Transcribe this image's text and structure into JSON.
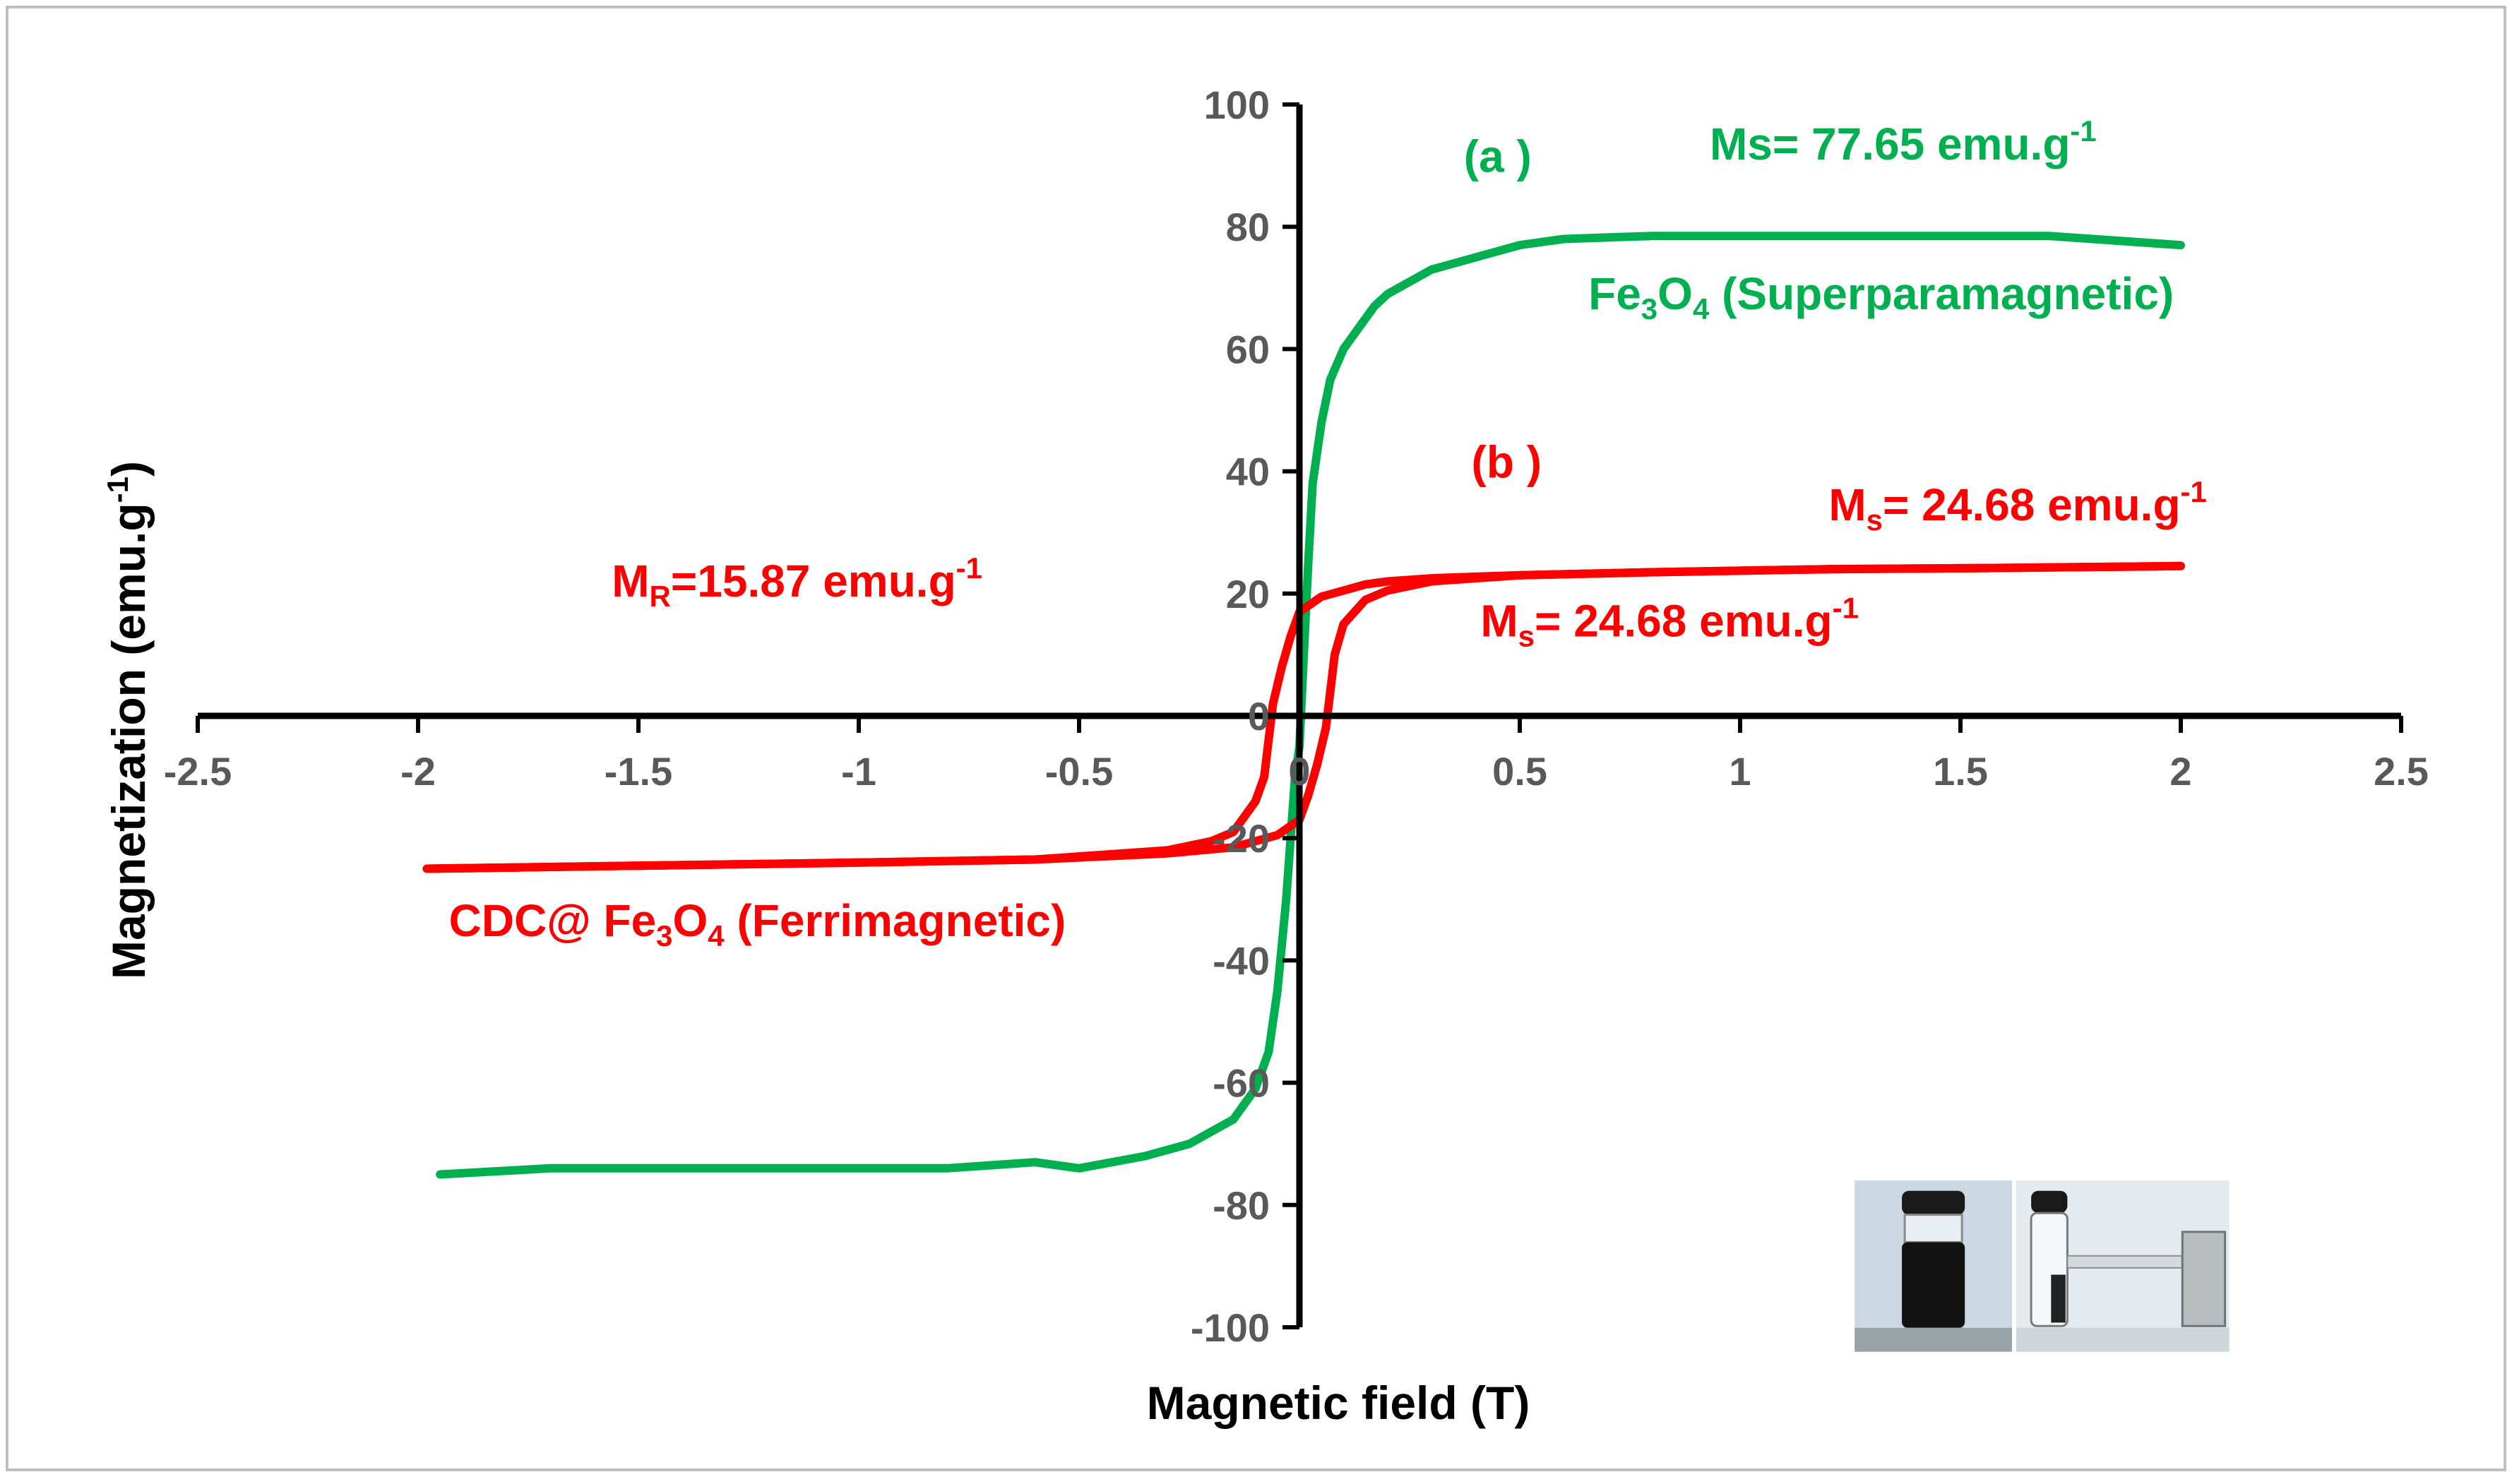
{
  "chart_data": {
    "type": "line",
    "title": "",
    "xlabel": "Magnetic field (T)",
    "ylabel": "Magnetization (emu.g⁻¹)",
    "ylabel_parts": {
      "main": "Magnetization (emu.g",
      "sup": "-1",
      "close": ")"
    },
    "xlim": [
      -2.5,
      2.5
    ],
    "ylim": [
      -100,
      100
    ],
    "x_ticks": [
      -2.5,
      -2,
      -1.5,
      -1,
      -0.5,
      0,
      0.5,
      1,
      1.5,
      2,
      2.5
    ],
    "y_ticks": [
      -100,
      -80,
      -60,
      -40,
      -20,
      0,
      20,
      40,
      60,
      80,
      100
    ],
    "x_tick_labels": [
      "-2.5",
      "-2",
      "-1.5",
      "-1",
      "-0.5",
      "0",
      "0.5",
      "1",
      "1.5",
      "2",
      "2.5"
    ],
    "y_tick_labels": [
      "-100",
      "-80",
      "-60",
      "-40",
      "-20",
      "0",
      "20",
      "40",
      "60",
      "80",
      "100"
    ],
    "colors": {
      "fe3o4": "#00B050",
      "cdc": "#FF0000",
      "axis": "#000000",
      "tick": "#595959"
    },
    "series": [
      {
        "name": "Fe3O4 (Superparamagnetic)",
        "color": "#00B050",
        "x": [
          -1.95,
          -1.7,
          -1.4,
          -1.1,
          -0.8,
          -0.6,
          -0.5,
          -0.35,
          -0.25,
          -0.15,
          -0.1,
          -0.07,
          -0.05,
          -0.03,
          -0.02,
          -0.01,
          0,
          0.01,
          0.02,
          0.03,
          0.05,
          0.07,
          0.1,
          0.13,
          0.17,
          0.2,
          0.25,
          0.3,
          0.4,
          0.5,
          0.6,
          0.8,
          1.0,
          1.2,
          1.5,
          1.7,
          1.8,
          1.9,
          2.0
        ],
        "y": [
          -75,
          -74,
          -74,
          -74,
          -74,
          -73,
          -74,
          -72,
          -70,
          -66,
          -61,
          -55,
          -45,
          -30,
          -20,
          -10,
          -5,
          10,
          25,
          38,
          48,
          55,
          60,
          63,
          67,
          69,
          71,
          73,
          75,
          77,
          78,
          78.5,
          78.5,
          78.5,
          78.5,
          78.5,
          78,
          77.5,
          77
        ]
      },
      {
        "name": "CDC@ Fe3O4 (Ferrimagnetic) - ascending",
        "color": "#FF0000",
        "x": [
          -1.98,
          -1.5,
          -1.0,
          -0.6,
          -0.3,
          -0.15,
          -0.05,
          0,
          0.02,
          0.04,
          0.06,
          0.07,
          0.08,
          0.1,
          0.15,
          0.2,
          0.3,
          0.5,
          0.8,
          1.2,
          1.6,
          2.0
        ],
        "y": [
          -25,
          -24.5,
          -24,
          -23.5,
          -22.5,
          -21.5,
          -19.5,
          -17,
          -13,
          -8,
          -2,
          4,
          10,
          15,
          19,
          20.5,
          22,
          23,
          23.5,
          24,
          24.2,
          24.5
        ]
      },
      {
        "name": "CDC@ Fe3O4 (Ferrimagnetic) - descending",
        "color": "#FF0000",
        "x": [
          2.0,
          1.6,
          1.2,
          0.8,
          0.5,
          0.3,
          0.2,
          0.15,
          0.1,
          0.05,
          0,
          -0.02,
          -0.04,
          -0.06,
          -0.07,
          -0.08,
          -0.1,
          -0.15,
          -0.2,
          -0.3,
          -0.6,
          -1.0,
          -1.5,
          -1.98
        ],
        "y": [
          24.5,
          24.2,
          24,
          23.5,
          23,
          22.5,
          22,
          21.5,
          20.5,
          19.5,
          17,
          13,
          8,
          2,
          -4,
          -10,
          -14,
          -19,
          -20.5,
          -22,
          -23.5,
          -24,
          -24.5,
          -25
        ]
      }
    ],
    "annotations": [
      {
        "id": "a-label",
        "parts": [
          {
            "t": "(a )"
          }
        ],
        "color": "#00B050",
        "x": 0.45,
        "y": 89
      },
      {
        "id": "ms-a",
        "parts": [
          {
            "t": "Ms= 77.65 emu.g"
          },
          {
            "t": "-1",
            "s": "sup"
          }
        ],
        "color": "#00B050",
        "x": 1.37,
        "y": 91
      },
      {
        "id": "fe3o4-label",
        "parts": [
          {
            "t": "Fe"
          },
          {
            "t": "3",
            "s": "sub"
          },
          {
            "t": "O"
          },
          {
            "t": "4",
            "s": "sub"
          },
          {
            "t": " (Superparamagnetic)"
          }
        ],
        "color": "#00B050",
        "x": 1.32,
        "y": 66.5
      },
      {
        "id": "b-label",
        "parts": [
          {
            "t": "(b )"
          }
        ],
        "color": "#FF0000",
        "x": 0.47,
        "y": 39
      },
      {
        "id": "ms-b-right",
        "parts": [
          {
            "t": "M"
          },
          {
            "t": "s",
            "s": "sub"
          },
          {
            "t": "= 24.68 emu.g"
          },
          {
            "t": "-1",
            "s": "sup"
          }
        ],
        "color": "#FF0000",
        "x": 1.63,
        "y": 32
      },
      {
        "id": "mr-label",
        "parts": [
          {
            "t": "M"
          },
          {
            "t": "R",
            "s": "sub"
          },
          {
            "t": "=15.87   emu.g"
          },
          {
            "t": "-1",
            "s": "sup"
          }
        ],
        "color": "#FF0000",
        "x": -1.14,
        "y": 19.5
      },
      {
        "id": "ms-b-mid",
        "parts": [
          {
            "t": "M"
          },
          {
            "t": "s",
            "s": "sub"
          },
          {
            "t": "= 24.68 emu.g"
          },
          {
            "t": "-1",
            "s": "sup"
          }
        ],
        "color": "#FF0000",
        "x": 0.84,
        "y": 13
      },
      {
        "id": "cdc-label",
        "parts": [
          {
            "t": "CDC@ Fe"
          },
          {
            "t": "3",
            "s": "sub"
          },
          {
            "t": "O"
          },
          {
            "t": "4",
            "s": "sub"
          },
          {
            "t": " (Ferrimagnetic)"
          }
        ],
        "color": "#FF0000",
        "x": -1.23,
        "y": -36
      }
    ],
    "inset": {
      "description": "two vials photo",
      "x_from": 1.26,
      "x_to": 2.11,
      "y_from": -76,
      "y_to": -104
    }
  }
}
